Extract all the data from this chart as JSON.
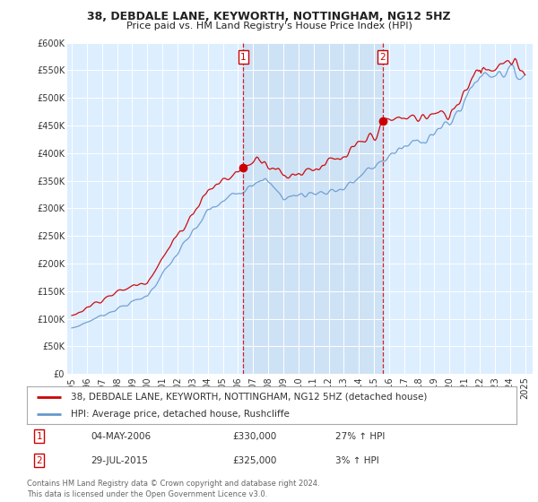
{
  "title": "38, DEBDALE LANE, KEYWORTH, NOTTINGHAM, NG12 5HZ",
  "subtitle": "Price paid vs. HM Land Registry's House Price Index (HPI)",
  "legend_line1": "38, DEBDALE LANE, KEYWORTH, NOTTINGHAM, NG12 5HZ (detached house)",
  "legend_line2": "HPI: Average price, detached house, Rushcliffe",
  "sale1_date": "04-MAY-2006",
  "sale1_price": "£330,000",
  "sale1_hpi": "27% ↑ HPI",
  "sale2_date": "29-JUL-2015",
  "sale2_price": "£325,000",
  "sale2_hpi": "3% ↑ HPI",
  "footer": "Contains HM Land Registry data © Crown copyright and database right 2024.\nThis data is licensed under the Open Government Licence v3.0.",
  "sale1_year": 2006.35,
  "sale2_year": 2015.57,
  "red_color": "#cc0000",
  "blue_color": "#6699cc",
  "shade_color": "#cce0f5",
  "background_color": "#ffffff",
  "plot_bg_color": "#ddeeff",
  "ylim": [
    0,
    600000
  ],
  "xlim_start": 1994.7,
  "xlim_end": 2025.5,
  "yticks": [
    0,
    50000,
    100000,
    150000,
    200000,
    250000,
    300000,
    350000,
    400000,
    450000,
    500000,
    550000,
    600000
  ],
  "ytick_labels": [
    "£0",
    "£50K",
    "£100K",
    "£150K",
    "£200K",
    "£250K",
    "£300K",
    "£350K",
    "£400K",
    "£450K",
    "£500K",
    "£550K",
    "£600K"
  ],
  "xticks": [
    1995,
    1996,
    1997,
    1998,
    1999,
    2000,
    2001,
    2002,
    2003,
    2004,
    2005,
    2006,
    2007,
    2008,
    2009,
    2010,
    2011,
    2012,
    2013,
    2014,
    2015,
    2016,
    2017,
    2018,
    2019,
    2020,
    2021,
    2022,
    2023,
    2024,
    2025
  ]
}
